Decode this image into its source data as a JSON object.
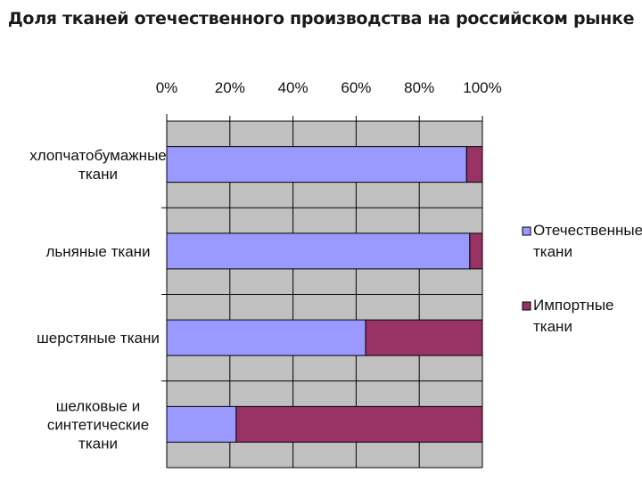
{
  "chart_data": {
    "type": "bar",
    "orientation": "horizontal",
    "stacked": "percent",
    "title": "Доля тканей отечественного производства на российском рынке",
    "xlabel": "",
    "ylabel": "",
    "xlim": [
      0,
      100
    ],
    "x_ticks": [
      "0%",
      "20%",
      "40%",
      "60%",
      "80%",
      "100%"
    ],
    "x_axis_position": "top",
    "grid": true,
    "legend_position": "right",
    "categories": [
      [
        "хлопчатобумажные",
        "ткани"
      ],
      [
        "льняные ткани"
      ],
      [
        "шерстяные ткани"
      ],
      [
        "шелковые и",
        "синтетические",
        "ткани"
      ]
    ],
    "series": [
      {
        "name": [
          "Отечественные",
          "ткани"
        ],
        "values": [
          95,
          96,
          63,
          22
        ],
        "color": "#9999ff"
      },
      {
        "name": [
          "Импортные",
          "ткани"
        ],
        "values": [
          5,
          4,
          37,
          78
        ],
        "color": "#993366"
      }
    ],
    "plot_background": "#c0c0c0"
  }
}
